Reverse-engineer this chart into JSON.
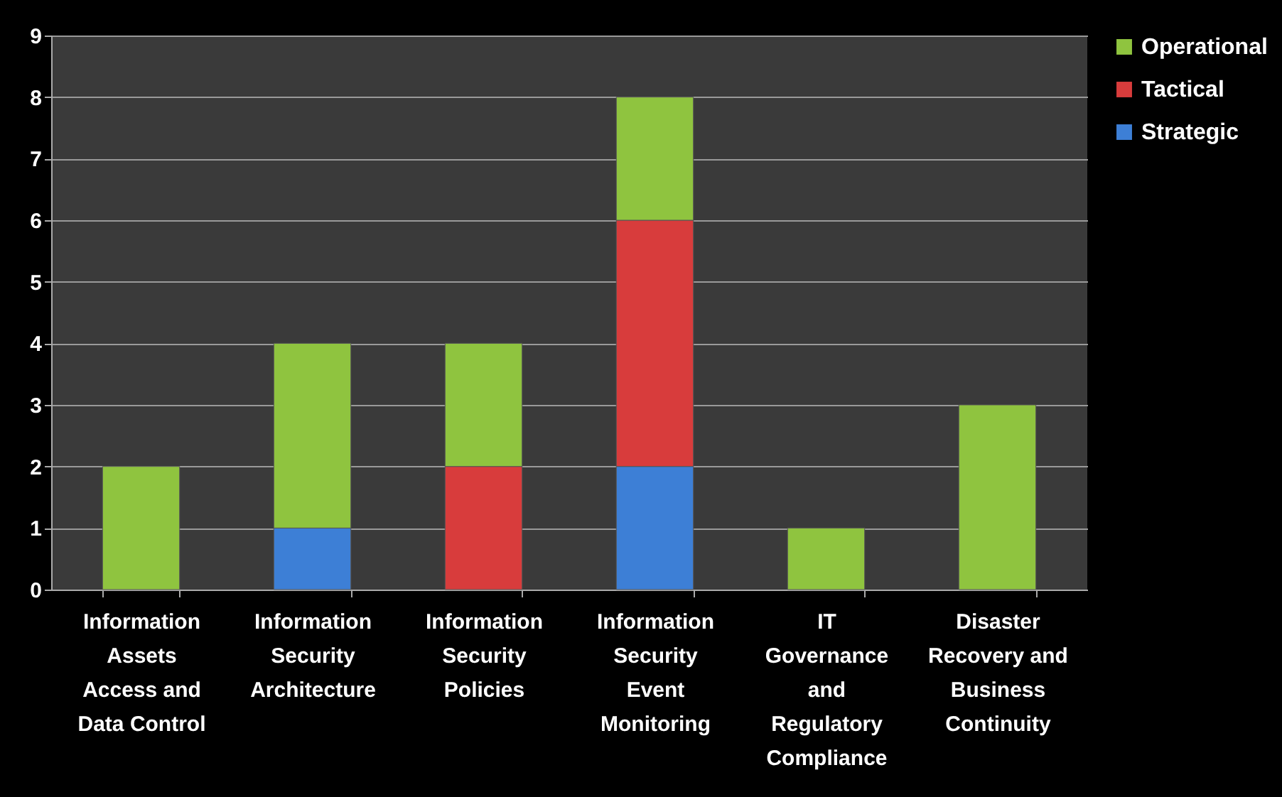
{
  "chart_data": {
    "type": "bar",
    "stacked": true,
    "categories": [
      "Information Assets Access and Data Control",
      "Information Security Architecture",
      "Information Security Policies",
      "Information Security Event Monitoring",
      "IT Governance and Regulatory Compliance",
      "Disaster Recovery and Business Continuity"
    ],
    "series": [
      {
        "name": "Strategic",
        "color": "#3d7fd6",
        "values": [
          null,
          1,
          null,
          2,
          null,
          null
        ]
      },
      {
        "name": "Tactical",
        "color": "#d83c3c",
        "values": [
          null,
          null,
          2,
          4,
          null,
          null
        ]
      },
      {
        "name": "Operational",
        "color": "#8fc43f",
        "values": [
          2,
          3,
          2,
          2,
          1,
          3
        ]
      }
    ],
    "ylim": [
      0,
      9
    ],
    "yticks": [
      0,
      1,
      2,
      3,
      4,
      5,
      6,
      7,
      8,
      9
    ],
    "grid": "y",
    "legend": "right"
  }
}
